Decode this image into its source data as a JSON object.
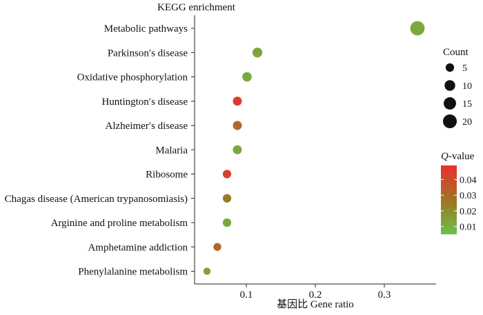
{
  "chart_data": {
    "type": "scatter",
    "title": "KEGG enrichment",
    "xlabel": "基因比  Gene ratio",
    "ylabel": "",
    "xlim": [
      0.025,
      0.375
    ],
    "x_ticks": [
      0.1,
      0.2,
      0.3
    ],
    "x_tick_labels": [
      "0.1",
      "0.2",
      "0.3"
    ],
    "categories": [
      "Metabolic pathways",
      "Parkinson′s disease",
      "Oxidative phosphorylation",
      "Huntington′s disease",
      "Alzheimer′s disease",
      "Malaria",
      "Ribosome",
      "Chagas disease (American trypanosomiasis)",
      "Arginine and proline metabolism",
      "Amphetamine addiction",
      "Phenylalanine metabolism"
    ],
    "points": [
      {
        "term": "Metabolic pathways",
        "gene_ratio": 0.348,
        "count": 22,
        "q_value": 0.012
      },
      {
        "term": "Parkinson′s disease",
        "gene_ratio": 0.116,
        "count": 8,
        "q_value": 0.013
      },
      {
        "term": "Oxidative phosphorylation",
        "gene_ratio": 0.101,
        "count": 7,
        "q_value": 0.012
      },
      {
        "term": "Huntington′s disease",
        "gene_ratio": 0.087,
        "count": 6,
        "q_value": 0.045
      },
      {
        "term": "Alzheimer′s disease",
        "gene_ratio": 0.087,
        "count": 6,
        "q_value": 0.03
      },
      {
        "term": "Malaria",
        "gene_ratio": 0.087,
        "count": 6,
        "q_value": 0.012
      },
      {
        "term": "Ribosome",
        "gene_ratio": 0.072,
        "count": 5,
        "q_value": 0.043
      },
      {
        "term": "Chagas disease (American trypanosomiasis)",
        "gene_ratio": 0.072,
        "count": 5,
        "q_value": 0.025
      },
      {
        "term": "Arginine and proline metabolism",
        "gene_ratio": 0.072,
        "count": 5,
        "q_value": 0.012
      },
      {
        "term": "Amphetamine addiction",
        "gene_ratio": 0.058,
        "count": 4,
        "q_value": 0.031
      },
      {
        "term": "Phenylalanine metabolism",
        "gene_ratio": 0.043,
        "count": 3,
        "q_value": 0.013
      }
    ],
    "size_legend": {
      "title": "Count",
      "values": [
        5,
        10,
        15,
        20
      ],
      "labels": [
        "5",
        "10",
        "15",
        "20"
      ]
    },
    "color_legend": {
      "title_prefix": "Q",
      "title_suffix": "-value",
      "range": [
        0.005,
        0.049
      ],
      "ticks": [
        0.01,
        0.02,
        0.03,
        0.04
      ],
      "tick_labels": [
        "0.01",
        "0.02",
        "0.03",
        "0.04"
      ],
      "low_color": "#6ac24a",
      "mid_color": "#9a7a26",
      "high_color": "#e8302c"
    }
  }
}
